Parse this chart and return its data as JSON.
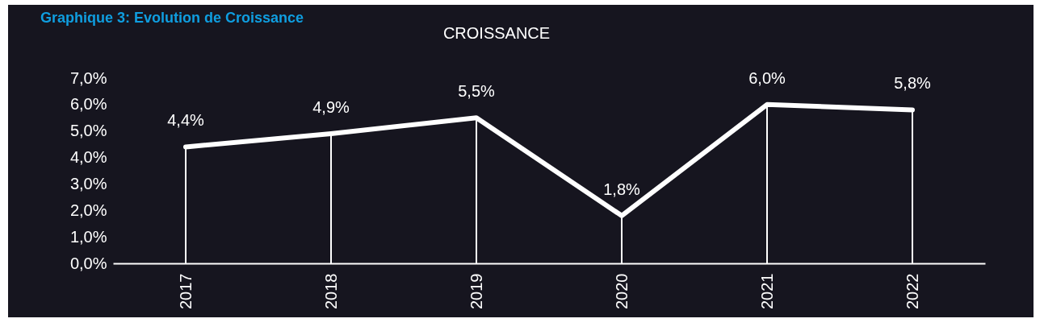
{
  "chart_data": {
    "type": "line",
    "title": "Graphique 3: Evolution de Croissance",
    "subtitle": "CROISSANCE",
    "categories": [
      "2017",
      "2018",
      "2019",
      "2020",
      "2021",
      "2022"
    ],
    "series": [
      {
        "color": "#ffffff",
        "values": [
          4.4,
          4.9,
          5.5,
          1.8,
          6.0,
          5.8
        ],
        "value_labels": [
          "4,4%",
          "4,9%",
          "5,5%",
          "1,8%",
          "6,0%",
          "5,8%"
        ]
      }
    ],
    "ylim": [
      0,
      7
    ],
    "yticks": [
      {
        "value": 0,
        "label": "0,0%"
      },
      {
        "value": 1,
        "label": "1,0%"
      },
      {
        "value": 2,
        "label": "2,0%"
      },
      {
        "value": 3,
        "label": "3,0%"
      },
      {
        "value": 4,
        "label": "4,0%"
      },
      {
        "value": 5,
        "label": "5,0%"
      },
      {
        "value": 6,
        "label": "6,0%"
      },
      {
        "value": 7,
        "label": "7,0%"
      }
    ],
    "grid": "x",
    "marker": "none",
    "line_style": "solid"
  }
}
